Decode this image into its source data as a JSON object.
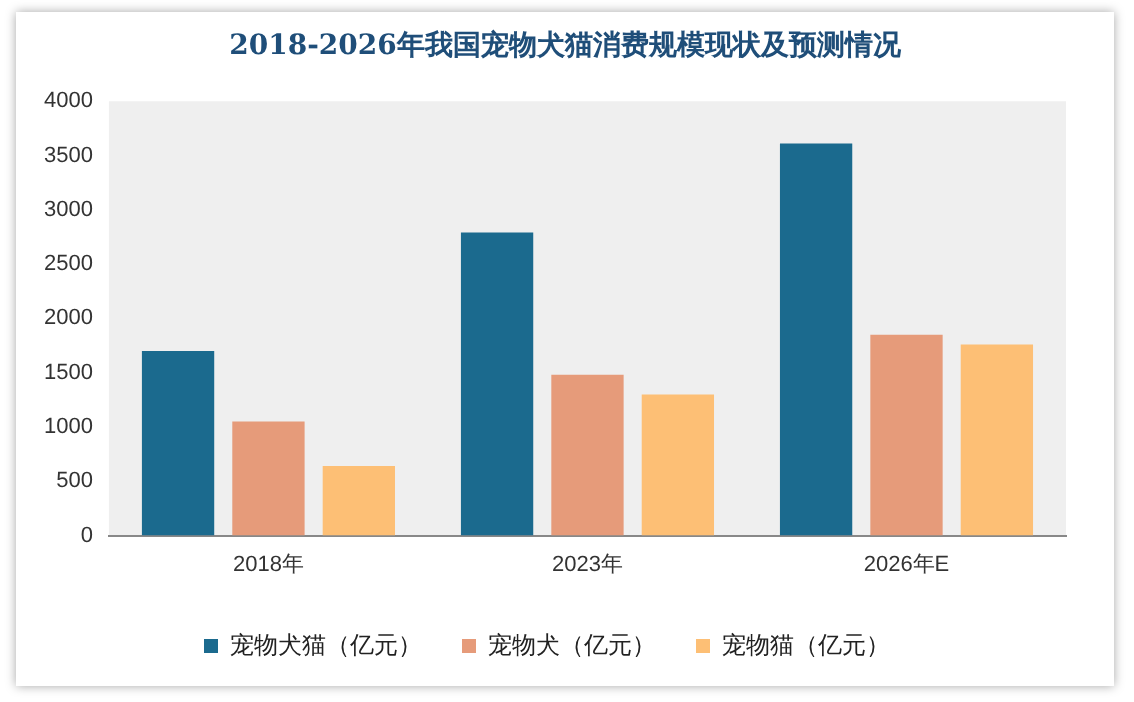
{
  "chart_data": {
    "type": "bar",
    "title": "2018-2026年我国宠物犬猫消费规模现状及预测情况",
    "categories": [
      "2018年",
      "2023年",
      "2026年E"
    ],
    "series": [
      {
        "name": "宠物犬猫（亿元）",
        "color": "#1b6a8e",
        "values": [
          1700,
          2790,
          3610
        ]
      },
      {
        "name": "宠物犬（亿元）",
        "color": "#e69b7a",
        "values": [
          1050,
          1480,
          1850
        ]
      },
      {
        "name": "宠物猫（亿元）",
        "color": "#fdbf75",
        "values": [
          640,
          1300,
          1760
        ]
      }
    ],
    "ylim": [
      0,
      4000
    ],
    "yticks": [
      0,
      500,
      1000,
      1500,
      2000,
      2500,
      3000,
      3500,
      4000
    ],
    "grid": false,
    "legend": "bottom"
  }
}
